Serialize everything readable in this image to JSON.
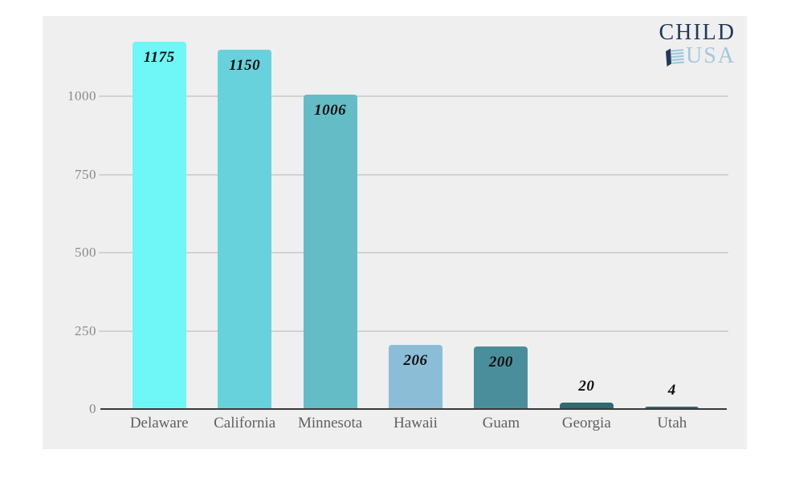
{
  "page": {
    "background": "#ffffff",
    "card_background": "#efefef"
  },
  "logo": {
    "line1": "CHILD",
    "line2": "USA",
    "color_primary": "#21395b",
    "color_secondary": "#a3c7dd",
    "icon": "flag-icon"
  },
  "chart_data": {
    "type": "bar",
    "title": "",
    "xlabel": "",
    "ylabel": "",
    "categories": [
      "Delaware",
      "California",
      "Minnesota",
      "Hawaii",
      "Guam",
      "Georgia",
      "Utah"
    ],
    "values": [
      1175,
      1150,
      1006,
      206,
      200,
      20,
      4
    ],
    "value_labels": [
      "1175",
      "1150",
      "1006",
      "206",
      "200",
      "20",
      "4"
    ],
    "bar_colors": [
      "#6ff7f7",
      "#68d2dc",
      "#64bdc6",
      "#8cbdd6",
      "#4b8e9b",
      "#2f6b73",
      "#2f6b73"
    ],
    "y_ticks": [
      0,
      250,
      500,
      750,
      1000
    ],
    "y_tick_labels": [
      "0",
      "250",
      "500",
      "750",
      "1000"
    ],
    "ylim": [
      0,
      1256
    ],
    "grid": true,
    "legend": false,
    "grid_color": "#d2d2d2",
    "axis_color": "#3a3a3a",
    "tick_label_color": "#8a8a8a",
    "category_label_color": "#606060",
    "value_label_color": "#0e0e0e"
  }
}
